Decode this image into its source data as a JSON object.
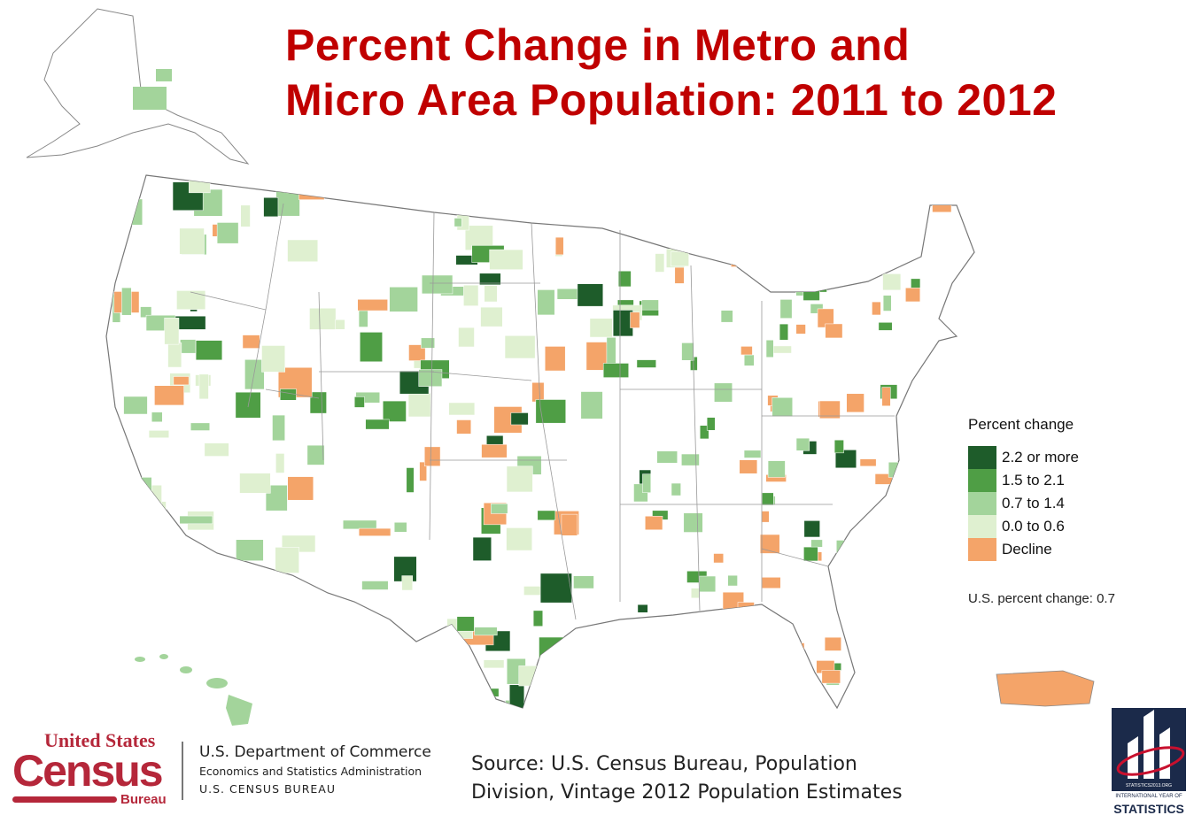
{
  "title_line1": "Percent Change in Metro and",
  "title_line2": "Micro Area Population: 2011 to 2012",
  "legend": {
    "title": "Percent change",
    "items": [
      {
        "label": "2.2 or more",
        "color": "#1e5c2a"
      },
      {
        "label": "1.5 to 2.1",
        "color": "#4f9e45"
      },
      {
        "label": "0.7 to 1.4",
        "color": "#a3d49b"
      },
      {
        "label": "0.0 to 0.6",
        "color": "#dff0d0"
      },
      {
        "label": "Decline",
        "color": "#f4a469"
      }
    ]
  },
  "us_percent_change": "U.S. percent change: 0.7",
  "source_line1": "Source: U.S. Census Bureau, Population",
  "source_line2": "Division, Vintage 2012 Population Estimates",
  "census_logo": {
    "united_states": "United States",
    "census": "Census",
    "bureau": "Bureau"
  },
  "department": {
    "line1": "U.S. Department of Commerce",
    "line2": "Economics and Statistics Administration",
    "line3": "U.S. CENSUS BUREAU"
  },
  "statistics_logo": {
    "url": "STATISTICS2013.ORG",
    "line1": "INTERNATIONAL YEAR OF",
    "line2": "STATISTICS"
  }
}
